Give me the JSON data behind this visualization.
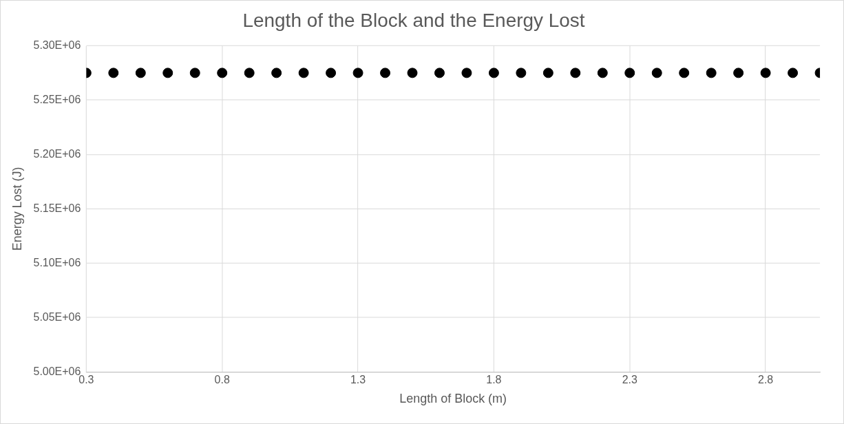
{
  "chart_data": {
    "type": "scatter",
    "title": "Length of the Block and the Energy Lost",
    "xlabel": "Length of Block (m)",
    "ylabel": "Energy Lost (J)",
    "x": [
      0.3,
      0.4,
      0.5,
      0.6,
      0.7,
      0.8,
      0.9,
      1.0,
      1.1,
      1.2,
      1.3,
      1.4,
      1.5,
      1.6,
      1.7,
      1.8,
      1.9,
      2.0,
      2.1,
      2.2,
      2.3,
      2.4,
      2.5,
      2.6,
      2.7,
      2.8,
      2.9,
      3.0
    ],
    "values": [
      5275000,
      5275000,
      5275000,
      5275000,
      5275000,
      5275000,
      5275000,
      5275000,
      5275000,
      5275000,
      5275000,
      5275000,
      5275000,
      5275000,
      5275000,
      5275000,
      5275000,
      5275000,
      5275000,
      5275000,
      5275000,
      5275000,
      5275000,
      5275000,
      5275000,
      5275000,
      5275000,
      5275000
    ],
    "color": "#000000",
    "marker": "circle",
    "xlim": [
      0.3,
      3.0
    ],
    "xticks": [
      0.3,
      0.8,
      1.3,
      1.8,
      2.3,
      2.8
    ],
    "ylim": [
      5000000,
      5300000
    ],
    "yticks": [
      {
        "value": 5000000,
        "label": "5.00E+06"
      },
      {
        "value": 5050000,
        "label": "5.05E+06"
      },
      {
        "value": 5100000,
        "label": "5.10E+06"
      },
      {
        "value": 5150000,
        "label": "5.15E+06"
      },
      {
        "value": 5200000,
        "label": "5.20E+06"
      },
      {
        "value": 5250000,
        "label": "5.25E+06"
      },
      {
        "value": 5300000,
        "label": "5.30E+06"
      }
    ],
    "grid": true
  }
}
